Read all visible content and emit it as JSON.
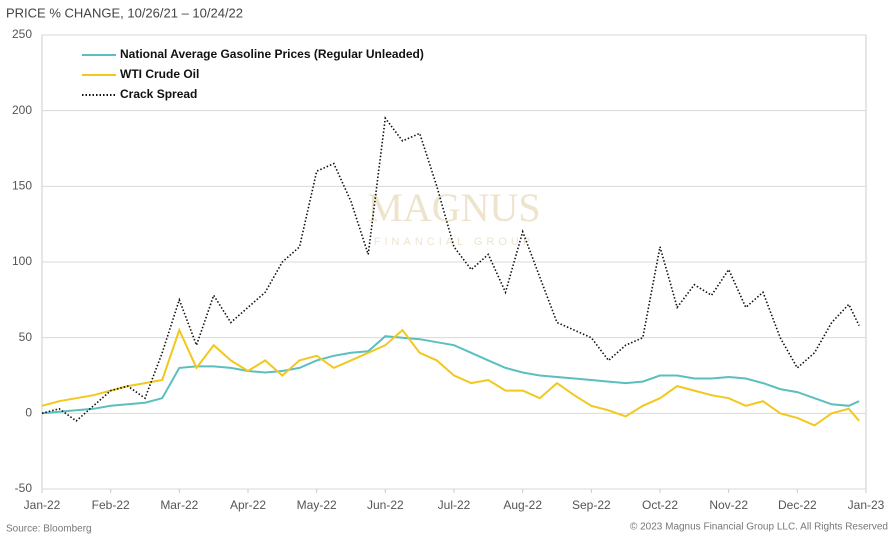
{
  "chart_data": {
    "type": "line",
    "title": "PRICE % CHANGE, 10/26/21 – 10/24/22",
    "source": "Source: Bloomberg",
    "copyright": "© 2023 Magnus Financial Group LLC. All Rights Reserved",
    "watermark": "MAGNUS",
    "watermark_sub": "FINANCIAL GROUP",
    "x": [
      0,
      0.25,
      0.5,
      0.75,
      1,
      1.25,
      1.5,
      1.75,
      2,
      2.25,
      2.5,
      2.75,
      3,
      3.25,
      3.5,
      3.75,
      4,
      4.25,
      4.5,
      4.75,
      5,
      5.25,
      5.5,
      5.75,
      6,
      6.25,
      6.5,
      6.75,
      7,
      7.25,
      7.5,
      7.75,
      8,
      8.25,
      8.5,
      8.75,
      9,
      9.25,
      9.5,
      9.75,
      10,
      10.25,
      10.5,
      10.75,
      11,
      11.25,
      11.5,
      11.75,
      11.9
    ],
    "xlim": [
      0,
      12
    ],
    "xticks": [
      {
        "value": 0,
        "label": "Jan-22"
      },
      {
        "value": 1,
        "label": "Feb-22"
      },
      {
        "value": 2,
        "label": "Mar-22"
      },
      {
        "value": 3,
        "label": "Apr-22"
      },
      {
        "value": 4,
        "label": "May-22"
      },
      {
        "value": 5,
        "label": "Jun-22"
      },
      {
        "value": 6,
        "label": "Jul-22"
      },
      {
        "value": 7,
        "label": "Aug-22"
      },
      {
        "value": 8,
        "label": "Sep-22"
      },
      {
        "value": 9,
        "label": "Oct-22"
      },
      {
        "value": 10,
        "label": "Nov-22"
      },
      {
        "value": 11,
        "label": "Dec-22"
      },
      {
        "value": 12,
        "label": "Jan-23"
      }
    ],
    "ylim": [
      -50,
      250
    ],
    "yticks": [
      -50,
      0,
      50,
      100,
      150,
      200,
      250
    ],
    "grid": true,
    "legend": "upper-left",
    "series": [
      {
        "name": "National Average Gasoline Prices (Regular Unleaded)",
        "color": "#5bbfbf",
        "dash": "solid",
        "values": [
          0,
          1,
          2,
          3,
          5,
          6,
          7,
          10,
          30,
          31,
          31,
          30,
          28,
          27,
          28,
          30,
          35,
          38,
          40,
          41,
          51,
          50,
          49,
          47,
          45,
          40,
          35,
          30,
          27,
          25,
          24,
          23,
          22,
          21,
          20,
          21,
          25,
          25,
          23,
          23,
          24,
          23,
          20,
          16,
          14,
          10,
          6,
          5,
          8
        ]
      },
      {
        "name": "WTI Crude Oil",
        "color": "#f2c81e",
        "dash": "solid",
        "values": [
          5,
          8,
          10,
          12,
          15,
          18,
          20,
          22,
          55,
          30,
          45,
          35,
          28,
          35,
          25,
          35,
          38,
          30,
          35,
          40,
          45,
          55,
          40,
          35,
          25,
          20,
          22,
          15,
          15,
          10,
          20,
          12,
          5,
          2,
          -2,
          5,
          10,
          18,
          15,
          12,
          10,
          5,
          8,
          0,
          -3,
          -8,
          0,
          3,
          -5
        ]
      },
      {
        "name": "Crack Spread",
        "color": "#111111",
        "dash": "dotted",
        "values": [
          0,
          3,
          -5,
          5,
          15,
          18,
          10,
          40,
          75,
          45,
          78,
          60,
          70,
          80,
          100,
          110,
          160,
          165,
          140,
          105,
          195,
          180,
          185,
          150,
          110,
          95,
          105,
          80,
          120,
          90,
          60,
          55,
          50,
          35,
          45,
          50,
          110,
          70,
          85,
          78,
          95,
          70,
          80,
          50,
          30,
          40,
          60,
          72,
          58
        ]
      }
    ]
  }
}
